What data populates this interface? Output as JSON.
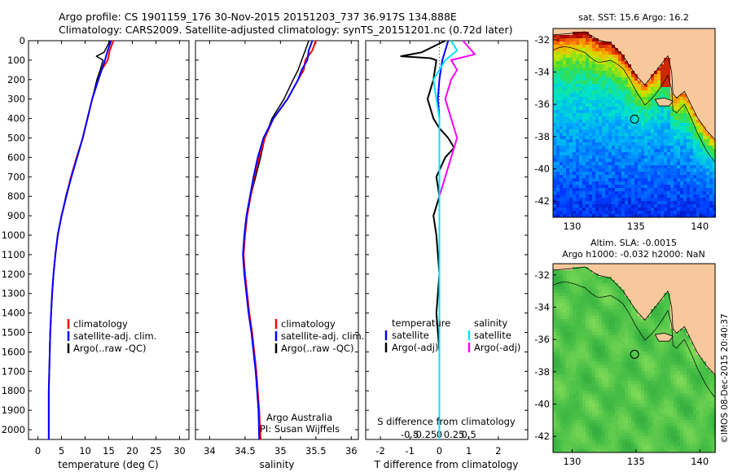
{
  "header": {
    "line1": "Argo profile: CS 1901159_176 30-Nov-2015 20151203_737 36.917S 134.888E",
    "line2": "Climatology: CARS2009. Satellite-adjusted climatology: synTS_20151201.nc (0.72d later)"
  },
  "colors": {
    "climatology": "#ff0000",
    "satellite": "#0000ff",
    "argo": "#000000",
    "sat_salinity": "#00e5ff",
    "argo_salinity": "#ff00ff",
    "land": "#f7c89b"
  },
  "chart_data": [
    {
      "type": "line",
      "id": "temperature",
      "xlabel": "temperature (deg C)",
      "xlim": [
        -2,
        32
      ],
      "ylim": [
        2050,
        0
      ],
      "xticks": [
        0,
        5,
        10,
        15,
        20,
        25,
        30
      ],
      "yticks": [
        0,
        100,
        200,
        300,
        400,
        500,
        600,
        700,
        800,
        900,
        1000,
        1100,
        1200,
        1300,
        1400,
        1500,
        1600,
        1700,
        1800,
        1900,
        2000
      ],
      "legend": [
        "climatology",
        "satellite-adj. clim.",
        "Argo(..raw -QC)"
      ],
      "series": [
        {
          "name": "climatology",
          "x": [
            16,
            15.2,
            14.8,
            13.5,
            12.8,
            11.5,
            10.5,
            9.5,
            8.2,
            7.0,
            6.0,
            5.0,
            4.2,
            3.7,
            3.3,
            3.0,
            2.8,
            2.6,
            2.5,
            2.4,
            2.3,
            2.3
          ],
          "y": [
            0,
            50,
            100,
            150,
            200,
            300,
            400,
            500,
            600,
            700,
            800,
            900,
            1000,
            1100,
            1200,
            1300,
            1400,
            1500,
            1600,
            1700,
            1800,
            2050
          ]
        },
        {
          "name": "satellite-adj. clim.",
          "x": [
            15.5,
            14.8,
            14.2,
            13.5,
            12.8,
            11.5,
            10.5,
            9.5,
            8.3,
            7.1,
            6.0,
            5.0,
            4.2,
            3.7,
            3.3,
            3.0,
            2.8,
            2.6,
            2.5,
            2.4,
            2.3,
            2.3
          ],
          "y": [
            0,
            50,
            100,
            150,
            200,
            300,
            400,
            500,
            600,
            700,
            800,
            900,
            1000,
            1100,
            1200,
            1300,
            1400,
            1500,
            1600,
            1700,
            1800,
            2050
          ]
        },
        {
          "name": "Argo(..raw -QC)",
          "x": [
            15.3,
            14.0,
            12.4,
            13.8,
            13.2,
            12.5,
            11.5,
            10.5,
            9.5,
            8.2,
            7.0,
            5.9,
            5.0,
            4.2,
            3.7,
            3.3,
            3.0,
            2.8,
            2.6,
            2.5,
            2.4,
            2.3,
            2.3
          ],
          "y": [
            0,
            60,
            80,
            100,
            150,
            200,
            300,
            400,
            500,
            600,
            700,
            800,
            900,
            1000,
            1100,
            1200,
            1300,
            1400,
            1500,
            1600,
            1700,
            1800,
            2050
          ]
        }
      ]
    },
    {
      "type": "line",
      "id": "salinity",
      "xlabel": "salinity",
      "xlim": [
        33.8,
        36.1
      ],
      "ylim": [
        2050,
        0
      ],
      "xticks": [
        34,
        34.5,
        35,
        35.5,
        36
      ],
      "xtick_labels": [
        "34",
        "34.5",
        "35",
        "35.5",
        "36"
      ],
      "legend": [
        "climatology",
        "satellite-adj. clim.",
        "Argo(..raw -QC)"
      ],
      "annotations": [
        "Argo Australia",
        "PI: Susan Wijffels"
      ],
      "series": [
        {
          "name": "climatology",
          "x": [
            35.5,
            35.45,
            35.35,
            35.33,
            35.25,
            35.1,
            34.9,
            34.78,
            34.7,
            34.63,
            34.58,
            34.53,
            34.5,
            34.48,
            34.5,
            34.53,
            34.56,
            34.6,
            34.63,
            34.66,
            34.68,
            34.7,
            34.72
          ],
          "y": [
            0,
            50,
            100,
            150,
            200,
            300,
            400,
            500,
            600,
            700,
            800,
            900,
            1000,
            1100,
            1200,
            1300,
            1400,
            1500,
            1600,
            1700,
            1800,
            1900,
            2050
          ]
        },
        {
          "name": "satellite-adj. clim.",
          "x": [
            35.45,
            35.4,
            35.38,
            35.3,
            35.25,
            35.1,
            34.9,
            34.76,
            34.68,
            34.62,
            34.57,
            34.52,
            34.49,
            34.47,
            34.49,
            34.52,
            34.55,
            34.59,
            34.62,
            34.65,
            34.67,
            34.69,
            34.7
          ],
          "y": [
            0,
            50,
            100,
            150,
            200,
            300,
            400,
            500,
            600,
            700,
            800,
            900,
            1000,
            1100,
            1200,
            1300,
            1400,
            1500,
            1600,
            1700,
            1800,
            1900,
            2050
          ]
        },
        {
          "name": "Argo(..raw -QC)",
          "x": [
            35.4,
            35.35,
            35.3,
            35.25,
            35.18,
            35.05,
            34.88,
            34.78,
            34.72,
            34.65,
            34.58,
            34.52,
            34.49,
            34.47,
            34.49,
            34.52,
            34.55,
            34.59,
            34.62,
            34.65,
            34.67,
            34.69,
            34.7
          ],
          "y": [
            0,
            50,
            100,
            150,
            200,
            300,
            400,
            500,
            600,
            700,
            800,
            900,
            1000,
            1100,
            1200,
            1300,
            1400,
            1500,
            1600,
            1700,
            1800,
            1900,
            2050
          ]
        }
      ]
    },
    {
      "type": "line",
      "id": "difference",
      "xlabel": "T difference from climatology",
      "xlabel_top": "S difference from climatology",
      "xlim": [
        -2.5,
        3
      ],
      "ylim": [
        2050,
        0
      ],
      "xticks": [
        -2,
        -1,
        0,
        1,
        2
      ],
      "s_ticks": [
        -0.5,
        -0.25,
        0,
        0.25,
        0.5
      ],
      "s_tick_labels": [
        "-0.5",
        "-0.25",
        "0",
        "0.25",
        "0.5"
      ],
      "legend_headers": [
        "temperature",
        "salinity"
      ],
      "legend": [
        "satellite",
        "Argo(-adj)",
        "satellite",
        "Argo(-adj)"
      ],
      "series": [
        {
          "name": "satellite",
          "x": [
            0.3,
            0.2,
            0.1,
            0.05,
            0,
            -0.05,
            0,
            0,
            0,
            0,
            0,
            0,
            0,
            0,
            0,
            0,
            0,
            0,
            0,
            0,
            0
          ],
          "y": [
            0,
            50,
            100,
            150,
            200,
            300,
            400,
            500,
            600,
            700,
            800,
            900,
            1000,
            1200,
            1400,
            1600,
            1800,
            1900,
            2000,
            2025,
            2050
          ]
        },
        {
          "name": "Argo(-adj)",
          "x": [
            0.2,
            -0.6,
            -1.3,
            -0.3,
            -0.1,
            -0.2,
            -0.4,
            -0.2,
            0,
            0.3,
            0.5,
            0.2,
            -0.1,
            0,
            -0.2,
            -0.1,
            0,
            -0.1,
            0,
            0,
            0,
            0
          ],
          "y": [
            0,
            60,
            80,
            90,
            100,
            200,
            300,
            400,
            450,
            500,
            550,
            600,
            700,
            800,
            900,
            1000,
            1200,
            1400,
            1600,
            1800,
            2000,
            2050
          ]
        },
        {
          "name": "satellite",
          "x": [
            0.2,
            0.3,
            0.1,
            0,
            -0.1,
            -0.05,
            0,
            0,
            0,
            0,
            0,
            0,
            0,
            0,
            0,
            0,
            0
          ],
          "y": [
            0,
            50,
            100,
            150,
            200,
            300,
            400,
            500,
            600,
            700,
            800,
            1000,
            1200,
            1400,
            1600,
            1800,
            2050
          ]
        },
        {
          "name": "Argo(-adj)",
          "x": [
            0.4,
            0.6,
            0.2,
            0.3,
            0.2,
            0.1,
            0.2,
            0.3,
            0.2,
            0.1,
            0,
            0,
            0,
            0,
            0,
            0
          ],
          "y": [
            0,
            70,
            100,
            150,
            200,
            300,
            400,
            500,
            600,
            700,
            800,
            1000,
            1200,
            1400,
            1600,
            2050
          ]
        }
      ]
    },
    {
      "type": "heatmap",
      "id": "sst-map",
      "title": "sat. SST: 15.6  Argo: 16.2",
      "xticks": [
        130,
        135,
        140
      ],
      "yticks": [
        -32,
        -34,
        -36,
        -38,
        -40,
        -42
      ],
      "xlim": [
        128.5,
        141.2
      ],
      "ylim": [
        -43,
        -31.3
      ],
      "marker": {
        "lon": 134.888,
        "lat": -36.917
      }
    },
    {
      "type": "heatmap",
      "id": "sla-map",
      "title_line1": "Altim. SLA: -0.0015",
      "title_line2": "Argo h1000: -0.032  h2000: NaN",
      "xticks": [
        130,
        135,
        140
      ],
      "yticks": [
        -32,
        -34,
        -36,
        -38,
        -40,
        -42
      ],
      "xlim": [
        128.5,
        141.2
      ],
      "ylim": [
        -43,
        -31.3
      ],
      "marker": {
        "lon": 134.888,
        "lat": -36.917
      }
    }
  ],
  "footer": {
    "credit": "©IMOS 08-Dec-2015 20:40:37"
  }
}
